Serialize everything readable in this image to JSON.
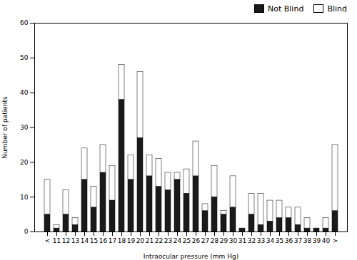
{
  "chart_data": {
    "type": "bar",
    "stacked": true,
    "xlabel": "Intraocular pressure (mm Hg)",
    "ylabel": "Number of patients",
    "categories": [
      "<",
      "11",
      "12",
      "13",
      "14",
      "15",
      "16",
      "17",
      "18",
      "19",
      "20",
      "21",
      "22",
      "23",
      "24",
      "25",
      "26",
      "27",
      "28",
      "29",
      "30",
      "31",
      "32",
      "33",
      "34",
      "35",
      "36",
      "37",
      "38",
      "39",
      "40",
      ">"
    ],
    "series": [
      {
        "name": "Not Blind",
        "color": "#1a1a1a",
        "values": [
          5,
          1,
          5,
          2,
          15,
          7,
          17,
          9,
          38,
          15,
          27,
          16,
          13,
          12,
          15,
          11,
          16,
          6,
          10,
          5,
          7,
          1,
          5,
          2,
          3,
          4,
          4,
          2,
          1,
          1,
          1,
          6
        ]
      },
      {
        "name": "Blind",
        "color": "#ffffff",
        "values": [
          10,
          1,
          7,
          2,
          9,
          6,
          8,
          10,
          10,
          7,
          19,
          6,
          8,
          5,
          2,
          7,
          10,
          2,
          9,
          1,
          9,
          0,
          6,
          9,
          6,
          5,
          3,
          5,
          3,
          0,
          3,
          19
        ]
      }
    ],
    "ylim": [
      0,
      60
    ],
    "yticks": [
      0,
      10,
      20,
      30,
      40,
      50,
      60
    ],
    "legend": "upper right"
  }
}
